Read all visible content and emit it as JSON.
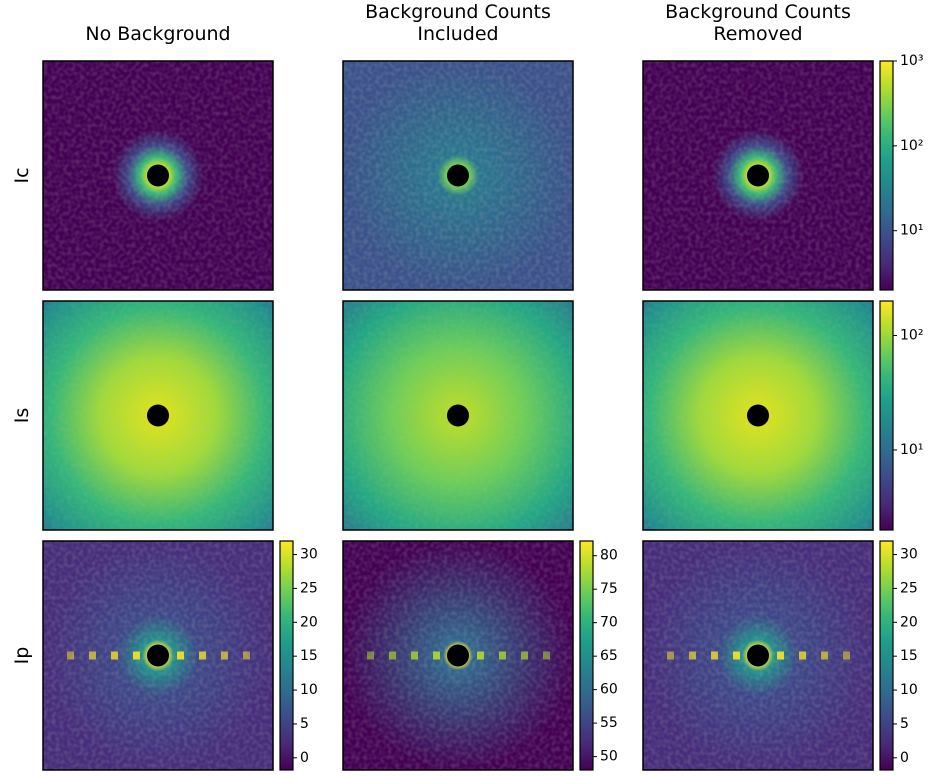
{
  "column_titles": [
    [
      "No Background"
    ],
    [
      "Background Counts",
      "Included"
    ],
    [
      "Background Counts",
      "Removed"
    ]
  ],
  "row_labels": [
    "Ic",
    "Is",
    "Ip"
  ],
  "colorbars": [
    {
      "scale": "log",
      "lim": [
        2,
        1000
      ],
      "ticks": [
        {
          "value": 10,
          "label": "10¹"
        },
        {
          "value": 100,
          "label": "10²"
        },
        {
          "value": 1000,
          "label": "10³"
        }
      ]
    },
    {
      "scale": "log",
      "lim": [
        2,
        200
      ],
      "ticks": [
        {
          "value": 10,
          "label": "10¹"
        },
        {
          "value": 100,
          "label": "10²"
        }
      ]
    },
    {
      "scale": "linear",
      "lim": [
        -1.8,
        32
      ],
      "ticks": [
        0,
        5,
        10,
        15,
        20,
        25,
        30
      ]
    },
    {
      "scale": "linear",
      "lim": [
        48,
        82.2
      ],
      "ticks": [
        50,
        55,
        60,
        65,
        70,
        75,
        80
      ]
    },
    {
      "scale": "linear",
      "lim": [
        -1.8,
        32
      ],
      "ticks": [
        0,
        5,
        10,
        15,
        20,
        25,
        30
      ]
    }
  ]
}
